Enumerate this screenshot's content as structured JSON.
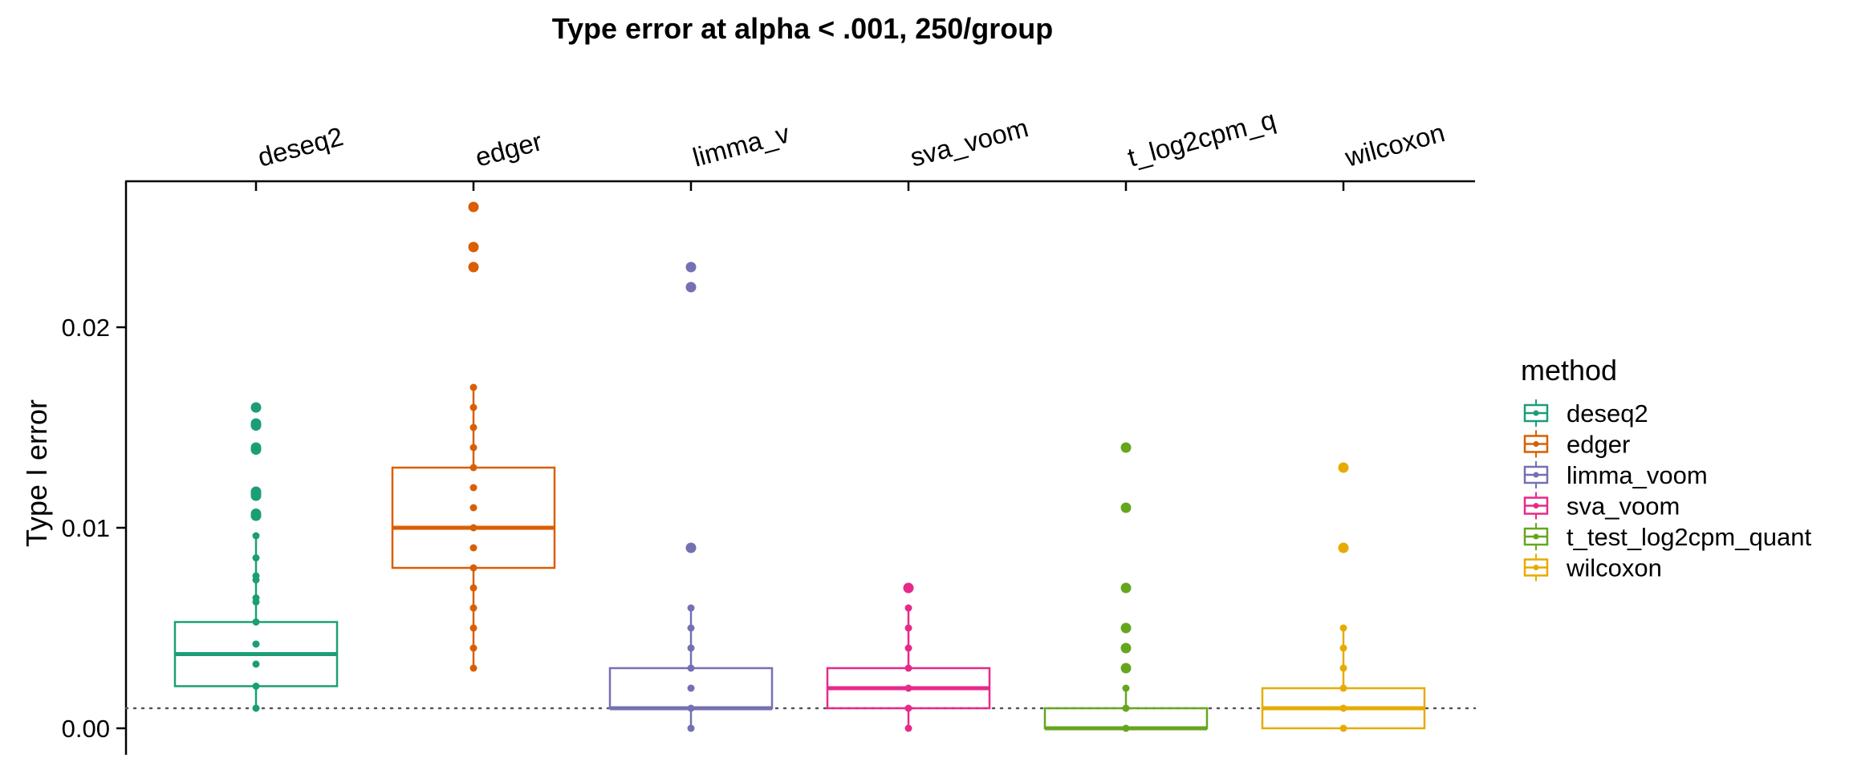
{
  "chart_data": {
    "type": "boxplot",
    "title": "Type error at alpha < .001, 250/group",
    "ylabel": "Type I error",
    "xlabel": "",
    "categories": [
      "deseq2",
      "edger",
      "limma_v",
      "sva_voom",
      "t_log2cpm_q",
      "wilcoxon"
    ],
    "y_ticks": [
      "0.00",
      "0.01",
      "0.02"
    ],
    "y_tick_values": [
      0.0,
      0.01,
      0.02
    ],
    "ylim": [
      -0.0013,
      0.0273
    ],
    "x_axis_position": "top",
    "reference_line": {
      "y": 0.001,
      "style": "dotted"
    },
    "grid": false,
    "legend": {
      "title": "method",
      "position": "right",
      "entries": [
        "deseq2",
        "edger",
        "limma_voom",
        "sva_voom",
        "t_test_log2cpm_quant",
        "wilcoxon"
      ]
    },
    "series": [
      {
        "method": "deseq2",
        "color": "#1b9e77",
        "q1": 0.0021,
        "median": 0.0037,
        "q3": 0.0053,
        "points": [
          0.001,
          0.0021,
          0.0032,
          0.0042,
          0.0053,
          0.0063,
          0.0065,
          0.0074,
          0.0076,
          0.0085,
          0.0096,
          0.0106,
          0.0107,
          0.0116,
          0.0117,
          0.0118,
          0.0139,
          0.014,
          0.0151,
          0.0152,
          0.016
        ],
        "outliers": [
          0.0106,
          0.0107,
          0.0116,
          0.0117,
          0.0118,
          0.0139,
          0.014,
          0.0151,
          0.0152,
          0.016
        ]
      },
      {
        "method": "edger",
        "color": "#d95f02",
        "q1": 0.008,
        "median": 0.01,
        "q3": 0.013,
        "points": [
          0.003,
          0.004,
          0.005,
          0.006,
          0.007,
          0.008,
          0.009,
          0.01,
          0.011,
          0.012,
          0.013,
          0.014,
          0.015,
          0.016,
          0.017,
          0.023,
          0.024,
          0.026
        ],
        "outliers": [
          0.023,
          0.024,
          0.026
        ]
      },
      {
        "method": "limma_voom",
        "color": "#7570b3",
        "q1": 0.001,
        "median": 0.001,
        "q3": 0.003,
        "points": [
          0.0,
          0.001,
          0.002,
          0.003,
          0.004,
          0.005,
          0.006,
          0.009,
          0.022,
          0.023
        ],
        "outliers": [
          0.009,
          0.022,
          0.023
        ]
      },
      {
        "method": "sva_voom",
        "color": "#e7298a",
        "q1": 0.001,
        "median": 0.002,
        "q3": 0.003,
        "points": [
          0.0,
          0.001,
          0.002,
          0.003,
          0.004,
          0.005,
          0.006,
          0.007
        ],
        "outliers": [
          0.007
        ]
      },
      {
        "method": "t_test_log2cpm_quant",
        "color": "#66a61e",
        "q1": 0.0,
        "median": 0.0,
        "q3": 0.001,
        "points": [
          0.0,
          0.001,
          0.002,
          0.003,
          0.004,
          0.005,
          0.007,
          0.011,
          0.014
        ],
        "outliers": [
          0.003,
          0.004,
          0.005,
          0.007,
          0.011,
          0.014
        ]
      },
      {
        "method": "wilcoxon",
        "color": "#e6ab02",
        "q1": 0.0,
        "median": 0.001,
        "q3": 0.002,
        "points": [
          0.0,
          0.001,
          0.002,
          0.003,
          0.004,
          0.005,
          0.009,
          0.013
        ],
        "outliers": [
          0.009,
          0.013
        ]
      }
    ]
  }
}
